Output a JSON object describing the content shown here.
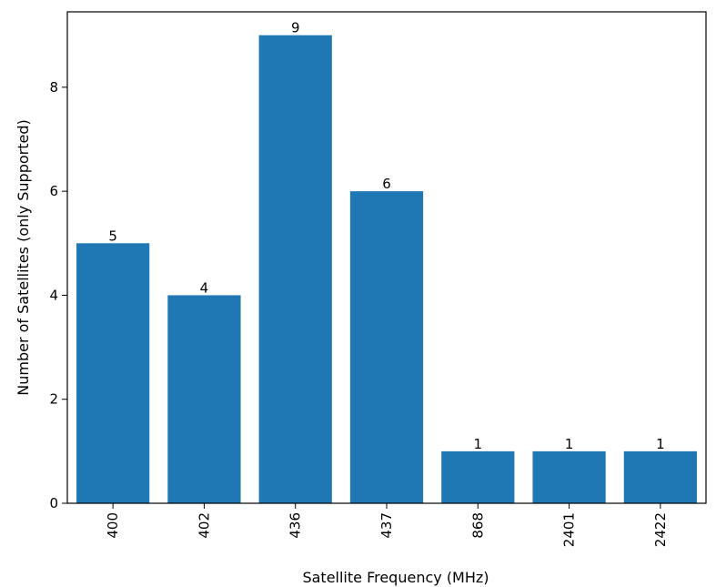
{
  "chart_data": {
    "type": "bar",
    "title": "",
    "xlabel": "Satellite Frequency (MHz)",
    "ylabel": "Number of Satellites (only Supported)",
    "categories": [
      "400",
      "402",
      "436",
      "437",
      "868",
      "2401",
      "2422"
    ],
    "values": [
      5,
      4,
      9,
      6,
      1,
      1,
      1
    ],
    "ylim": [
      0,
      9.45
    ],
    "yticks": [
      0,
      2,
      4,
      6,
      8
    ],
    "bar_color": "#1f77b4",
    "grid": false,
    "legend": "none",
    "xtick_rotation": 90
  }
}
